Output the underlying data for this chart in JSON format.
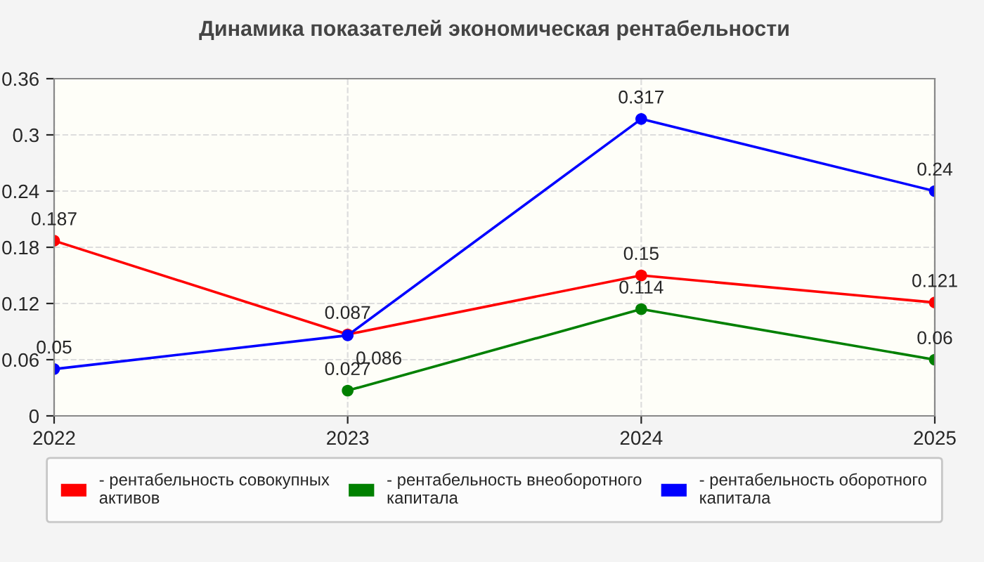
{
  "chart_data": {
    "type": "line",
    "title": "Динамика показателей экономическая рентабельности",
    "categories": [
      "2022",
      "2023",
      "2024",
      "2025"
    ],
    "series": [
      {
        "name": "- рентабельность совокупных активов",
        "color": "#ff0000",
        "values": [
          0.187,
          0.087,
          0.15,
          0.121
        ]
      },
      {
        "name": "- рентабельность внеоборотного капитала",
        "color": "#008000",
        "values": [
          null,
          0.027,
          0.114,
          0.06
        ]
      },
      {
        "name": "- рентабельность оборотного капитала",
        "color": "#0000ff",
        "values": [
          0.05,
          0.086,
          0.317,
          0.24
        ]
      }
    ],
    "ylim": [
      0,
      0.36
    ],
    "yticks": [
      0,
      0.06,
      0.12,
      0.18,
      0.24,
      0.3,
      0.36
    ],
    "grid": true,
    "legend": "bottom",
    "marker": "circle",
    "line_style": "solid",
    "data_labels": true
  }
}
